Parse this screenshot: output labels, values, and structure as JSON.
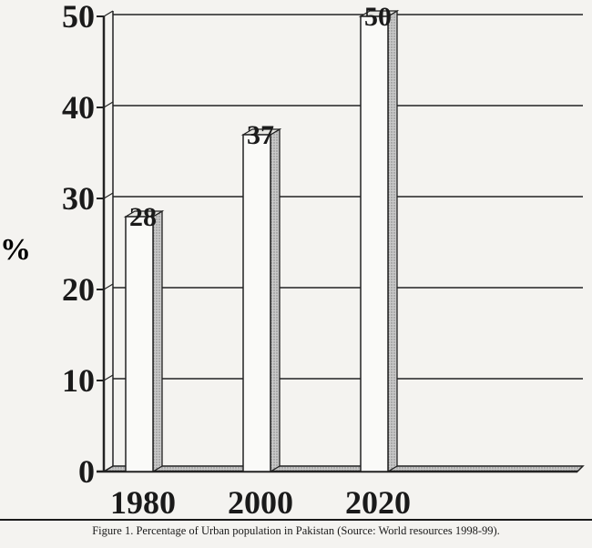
{
  "chart_data": {
    "type": "bar",
    "categories": [
      "1980",
      "2000",
      "2020"
    ],
    "values": [
      28,
      37,
      50
    ],
    "data_labels": [
      "28",
      "37",
      "50"
    ],
    "ylabel": "%",
    "ylim": [
      0,
      50
    ],
    "yticks": [
      0,
      10,
      20,
      30,
      40,
      50
    ],
    "grid": true,
    "style": "3d-bar",
    "bar_color": "#fafaf8",
    "bar_side_color": "#9a9a9a",
    "caption": "Figure 1. Percentage of Urban population in Pakistan (Source: World resources 1998-99)."
  }
}
